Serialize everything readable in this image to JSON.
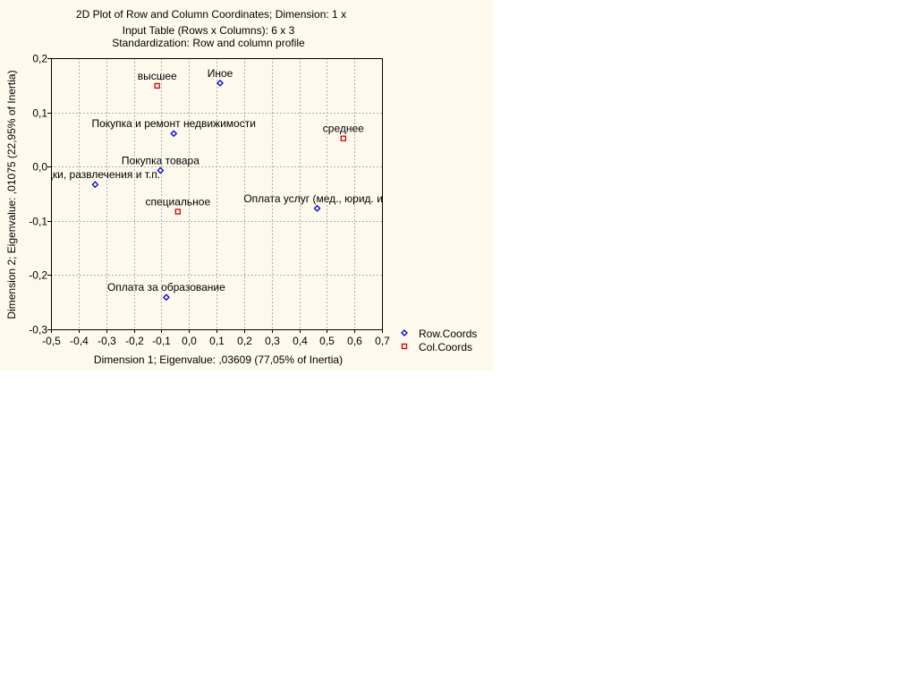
{
  "chart_data": {
    "type": "scatter",
    "title_lines": [
      "2D Plot of Row and Column Coordinates; Dimension:  1 x",
      "Input Table (Rows x Columns): 6 x 3",
      "Standardization: Row and column profile"
    ],
    "xlabel": "Dimension 1; Eigenvalue: ,03609 (77,05% of Inertia)",
    "ylabel": "Dimension 2; Eigenvalue: ,01075 (22,95% of Inertia)",
    "xlim": [
      -0.5,
      0.7
    ],
    "ylim": [
      -0.3,
      0.2
    ],
    "x_ticks": [
      -0.5,
      -0.4,
      -0.3,
      -0.2,
      -0.1,
      0.0,
      0.1,
      0.2,
      0.3,
      0.4,
      0.5,
      0.6,
      0.7
    ],
    "x_tick_labels": [
      "-0,5",
      "-0,4",
      "-0,3",
      "-0,2",
      "-0,1",
      "0,0",
      "0,1",
      "0,2",
      "0,3",
      "0,4",
      "0,5",
      "0,6",
      "0,7"
    ],
    "y_ticks": [
      0.2,
      0.1,
      0.0,
      -0.1,
      -0.2,
      -0.3
    ],
    "y_tick_labels": [
      "0,2",
      "0,1",
      "0,0",
      "-0,1",
      "-0,2",
      "-0,3"
    ],
    "grid": true,
    "legend_position": "bottom-right, outside plot",
    "series": [
      {
        "name": "Row.Coords",
        "color": "#0000cc",
        "marker": "diamond",
        "points": [
          {
            "label": "Иное",
            "x": 0.113,
            "y": 0.154,
            "label_pos": "above"
          },
          {
            "label": "Покупка и ремонт недвижимости",
            "x": -0.055,
            "y": 0.061,
            "label_pos": "above"
          },
          {
            "label": "Покупка товара",
            "x": -0.103,
            "y": -0.007,
            "label_pos": "above"
          },
          {
            "label": "оездки, развлечения и т.п.",
            "x": -0.34,
            "y": -0.033,
            "label_pos": "above"
          },
          {
            "label": "Оплата услуг (мед., юрид. и т",
            "x": 0.465,
            "y": -0.077,
            "label_pos": "above"
          },
          {
            "label": "Оплата за образование",
            "x": -0.082,
            "y": -0.241,
            "label_pos": "above"
          }
        ]
      },
      {
        "name": "Col.Coords",
        "color": "#cc0000",
        "marker": "square",
        "points": [
          {
            "label": "высшее",
            "x": -0.115,
            "y": 0.149,
            "label_pos": "above"
          },
          {
            "label": "среднее",
            "x": 0.56,
            "y": 0.052,
            "label_pos": "above"
          },
          {
            "label": "специальное",
            "x": -0.04,
            "y": -0.083,
            "label_pos": "above"
          }
        ]
      }
    ]
  }
}
